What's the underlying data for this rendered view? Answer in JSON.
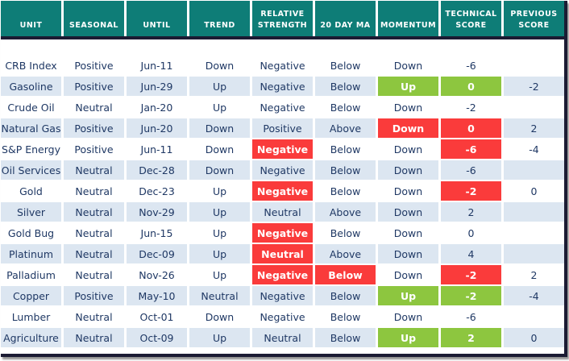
{
  "colors": {
    "header_bg": "#0e7d77",
    "header_text": "#ffffff",
    "divider": "#1b1b33",
    "alt_row_bg": "#dce6f1",
    "negative_highlight": "#fa3b3b",
    "positive_highlight": "#8dc63f",
    "text": "#1f3864"
  },
  "table": {
    "columns": [
      {
        "key": "unit",
        "label": "UNIT"
      },
      {
        "key": "seasonal",
        "label": "SEASONAL"
      },
      {
        "key": "until",
        "label": "UNTIL"
      },
      {
        "key": "trend",
        "label": "TREND"
      },
      {
        "key": "relative_strength",
        "label": "RELATIVE STRENGTH"
      },
      {
        "key": "ma_20day",
        "label": "20 DAY MA"
      },
      {
        "key": "momentum",
        "label": "MOMENTUM"
      },
      {
        "key": "technical_score",
        "label": "TECHNICAL SCORE"
      },
      {
        "key": "previous_score",
        "label": "PREVIOUS SCORE"
      }
    ],
    "rows": [
      {
        "unit": "CRB Index",
        "seasonal": "Positive",
        "until": "Jun-11",
        "trend": "Down",
        "relative_strength": "Negative",
        "ma_20day": "Below",
        "momentum": "Down",
        "technical_score": "-6",
        "previous_score": "",
        "highlights": {}
      },
      {
        "unit": "Gasoline",
        "seasonal": "Positive",
        "until": "Jun-29",
        "trend": "Up",
        "relative_strength": "Negative",
        "ma_20day": "Below",
        "momentum": "Up",
        "technical_score": "0",
        "previous_score": "-2",
        "highlights": {
          "momentum": "green",
          "technical_score": "green"
        }
      },
      {
        "unit": "Crude Oil",
        "seasonal": "Neutral",
        "until": "Jan-20",
        "trend": "Up",
        "relative_strength": "Negative",
        "ma_20day": "Below",
        "momentum": "Down",
        "technical_score": "-2",
        "previous_score": "",
        "highlights": {}
      },
      {
        "unit": "Natural Gas",
        "seasonal": "Positive",
        "until": "Jun-20",
        "trend": "Down",
        "relative_strength": "Positive",
        "ma_20day": "Above",
        "momentum": "Down",
        "technical_score": "0",
        "previous_score": "2",
        "highlights": {
          "momentum": "red",
          "technical_score": "red"
        }
      },
      {
        "unit": "S&P Energy",
        "seasonal": "Positive",
        "until": "Jun-11",
        "trend": "Down",
        "relative_strength": "Negative",
        "ma_20day": "Below",
        "momentum": "Down",
        "technical_score": "-6",
        "previous_score": "-4",
        "highlights": {
          "relative_strength": "red",
          "technical_score": "red"
        }
      },
      {
        "unit": "Oil Services",
        "seasonal": "Neutral",
        "until": "Dec-28",
        "trend": "Down",
        "relative_strength": "Negative",
        "ma_20day": "Below",
        "momentum": "Down",
        "technical_score": "-6",
        "previous_score": "",
        "highlights": {}
      },
      {
        "unit": "Gold",
        "seasonal": "Neutral",
        "until": "Dec-23",
        "trend": "Up",
        "relative_strength": "Negative",
        "ma_20day": "Below",
        "momentum": "Down",
        "technical_score": "-2",
        "previous_score": "0",
        "highlights": {
          "relative_strength": "red",
          "technical_score": "red"
        }
      },
      {
        "unit": "Silver",
        "seasonal": "Neutral",
        "until": "Nov-29",
        "trend": "Up",
        "relative_strength": "Neutral",
        "ma_20day": "Above",
        "momentum": "Down",
        "technical_score": "2",
        "previous_score": "",
        "highlights": {}
      },
      {
        "unit": "Gold Bug",
        "seasonal": "Neutral",
        "until": "Jun-15",
        "trend": "Up",
        "relative_strength": "Negative",
        "ma_20day": "Below",
        "momentum": "Down",
        "technical_score": "0",
        "previous_score": "",
        "highlights": {
          "relative_strength": "red"
        }
      },
      {
        "unit": "Platinum",
        "seasonal": "Neutral",
        "until": "Dec-09",
        "trend": "Up",
        "relative_strength": "Neutral",
        "ma_20day": "Above",
        "momentum": "Down",
        "technical_score": "4",
        "previous_score": "",
        "highlights": {
          "relative_strength": "red"
        }
      },
      {
        "unit": "Palladium",
        "seasonal": "Neutral",
        "until": "Nov-26",
        "trend": "Up",
        "relative_strength": "Negative",
        "ma_20day": "Below",
        "momentum": "Down",
        "technical_score": "-2",
        "previous_score": "2",
        "highlights": {
          "relative_strength": "red",
          "ma_20day": "red",
          "technical_score": "red"
        }
      },
      {
        "unit": "Copper",
        "seasonal": "Positive",
        "until": "May-10",
        "trend": "Neutral",
        "relative_strength": "Negative",
        "ma_20day": "Below",
        "momentum": "Up",
        "technical_score": "-2",
        "previous_score": "-4",
        "highlights": {
          "momentum": "green",
          "technical_score": "green"
        }
      },
      {
        "unit": "Lumber",
        "seasonal": "Neutral",
        "until": "Oct-01",
        "trend": "Down",
        "relative_strength": "Negative",
        "ma_20day": "Below",
        "momentum": "Down",
        "technical_score": "-6",
        "previous_score": "",
        "highlights": {}
      },
      {
        "unit": "Agriculture",
        "seasonal": "Neutral",
        "until": "Oct-09",
        "trend": "Up",
        "relative_strength": "Neutral",
        "ma_20day": "Below",
        "momentum": "Up",
        "technical_score": "2",
        "previous_score": "0",
        "highlights": {
          "momentum": "green",
          "technical_score": "green"
        }
      }
    ]
  }
}
